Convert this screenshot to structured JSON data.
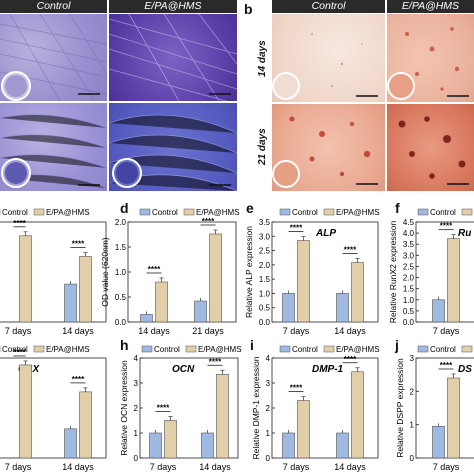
{
  "colors": {
    "control": "#9fb9e2",
    "treat": "#e2cfaa",
    "edge": "#555555"
  },
  "headers": {
    "control": "Control",
    "treat": "E/PA@HMS"
  },
  "panel_b": {
    "letter": "b",
    "rows": [
      "14 days",
      "21 days"
    ]
  },
  "letters": {
    "d": "d",
    "e": "e",
    "f": "f",
    "h": "h",
    "i": "i",
    "j": "j"
  },
  "sig": "****",
  "chart_data": [
    {
      "id": "c",
      "type": "bar",
      "ylabel": "",
      "categories": [
        "7 days",
        "14 days"
      ],
      "series": [
        {
          "name": "Control",
          "values": [
            null,
            0.55
          ]
        },
        {
          "name": "E/PA@HMS",
          "values": [
            1.25,
            0.95
          ]
        }
      ],
      "legend": "top",
      "significance": [
        "****",
        "****"
      ]
    },
    {
      "id": "d",
      "type": "bar",
      "ylabel": "OD value (620nm)",
      "categories": [
        "14 days",
        "21 days"
      ],
      "series": [
        {
          "name": "Control",
          "values": [
            0.15,
            0.42
          ]
        },
        {
          "name": "E/PA@HMS",
          "values": [
            0.8,
            1.76
          ]
        }
      ],
      "ylim": [
        0,
        2.0
      ],
      "legend": "top",
      "significance": [
        "****",
        "****"
      ]
    },
    {
      "id": "e",
      "type": "bar",
      "ylabel": "Relative ALP expression",
      "annotation": "ALP",
      "categories": [
        "7 days",
        "14 days"
      ],
      "series": [
        {
          "name": "Control",
          "values": [
            1.0,
            1.0
          ]
        },
        {
          "name": "E/PA@HMS",
          "values": [
            2.85,
            2.08
          ]
        }
      ],
      "ylim": [
        0,
        3.5
      ],
      "legend": "top",
      "significance": [
        "****",
        "****"
      ]
    },
    {
      "id": "f",
      "type": "bar",
      "ylabel": "Relative RunX2 expression",
      "annotation": "Ru",
      "categories": [
        "7 days"
      ],
      "series": [
        {
          "name": "Control",
          "values": [
            1.0
          ]
        },
        {
          "name": "E/PA@HMS",
          "values": [
            3.75
          ]
        }
      ],
      "ylim": [
        0,
        4.5
      ],
      "legend": "top",
      "significance": [
        "****"
      ]
    },
    {
      "id": "g",
      "type": "bar",
      "ylabel": "",
      "annotation": "OSX",
      "categories": [
        "7 days",
        "14 days"
      ],
      "series": [
        {
          "name": "Control",
          "values": [
            null,
            1.05
          ]
        },
        {
          "name": "E/PA@HMS",
          "values": [
            3.35,
            2.38
          ]
        }
      ],
      "legend": "top",
      "significance": [
        "****",
        "****"
      ]
    },
    {
      "id": "h",
      "type": "bar",
      "ylabel": "Relative OCN expression",
      "annotation": "OCN",
      "categories": [
        "7 days",
        "14 days"
      ],
      "series": [
        {
          "name": "Control",
          "values": [
            1.0,
            1.0
          ]
        },
        {
          "name": "E/PA@HMS",
          "values": [
            1.5,
            3.35
          ]
        }
      ],
      "ylim": [
        0,
        4
      ],
      "legend": "top",
      "significance": [
        "****",
        "****"
      ]
    },
    {
      "id": "i",
      "type": "bar",
      "ylabel": "Relative DMP-1 expression",
      "annotation": "DMP-1",
      "categories": [
        "7 days",
        "14 days"
      ],
      "series": [
        {
          "name": "Control",
          "values": [
            1.0,
            1.0
          ]
        },
        {
          "name": "E/PA@HMS",
          "values": [
            2.3,
            3.45
          ]
        }
      ],
      "ylim": [
        0,
        4
      ],
      "legend": "top",
      "significance": [
        "****",
        "****"
      ]
    },
    {
      "id": "j",
      "type": "bar",
      "ylabel": "Relative DSPP expression",
      "annotation": "DS",
      "categories": [
        "7 days"
      ],
      "series": [
        {
          "name": "Control",
          "values": [
            0.95
          ]
        },
        {
          "name": "E/PA@HMS",
          "values": [
            2.4
          ]
        }
      ],
      "ylim": [
        0,
        3
      ],
      "legend": "top",
      "significance": [
        "****"
      ]
    }
  ]
}
